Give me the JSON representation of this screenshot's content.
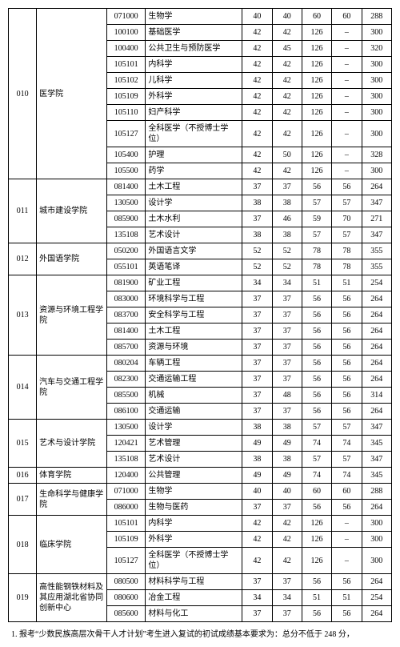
{
  "groups": [
    {
      "code": "010",
      "school": "医学院",
      "rows": [
        {
          "mc": "071000",
          "mn": "生物学",
          "c": [
            "40",
            "40",
            "60",
            "60",
            "288"
          ]
        },
        {
          "mc": "100100",
          "mn": "基础医学",
          "c": [
            "42",
            "42",
            "126",
            "–",
            "300"
          ]
        },
        {
          "mc": "100400",
          "mn": "公共卫生与预防医学",
          "c": [
            "42",
            "45",
            "126",
            "–",
            "320"
          ]
        },
        {
          "mc": "105101",
          "mn": "内科学",
          "c": [
            "42",
            "42",
            "126",
            "–",
            "300"
          ]
        },
        {
          "mc": "105102",
          "mn": "儿科学",
          "c": [
            "42",
            "42",
            "126",
            "–",
            "300"
          ]
        },
        {
          "mc": "105109",
          "mn": "外科学",
          "c": [
            "42",
            "42",
            "126",
            "–",
            "300"
          ]
        },
        {
          "mc": "105110",
          "mn": "妇产科学",
          "c": [
            "42",
            "42",
            "126",
            "–",
            "300"
          ]
        },
        {
          "mc": "105127",
          "mn": "全科医学（不授博士学位）",
          "c": [
            "42",
            "42",
            "126",
            "–",
            "300"
          ]
        },
        {
          "mc": "105400",
          "mn": "护理",
          "c": [
            "42",
            "50",
            "126",
            "–",
            "328"
          ]
        },
        {
          "mc": "105500",
          "mn": "药学",
          "c": [
            "42",
            "42",
            "126",
            "–",
            "300"
          ]
        }
      ]
    },
    {
      "code": "011",
      "school": "城市建设学院",
      "rows": [
        {
          "mc": "081400",
          "mn": "土木工程",
          "c": [
            "37",
            "37",
            "56",
            "56",
            "264"
          ]
        },
        {
          "mc": "130500",
          "mn": "设计学",
          "c": [
            "38",
            "38",
            "57",
            "57",
            "347"
          ]
        },
        {
          "mc": "085900",
          "mn": "土木水利",
          "c": [
            "37",
            "46",
            "59",
            "70",
            "271"
          ]
        },
        {
          "mc": "135108",
          "mn": "艺术设计",
          "c": [
            "38",
            "38",
            "57",
            "57",
            "347"
          ]
        }
      ]
    },
    {
      "code": "012",
      "school": "外国语学院",
      "rows": [
        {
          "mc": "050200",
          "mn": "外国语言文学",
          "c": [
            "52",
            "52",
            "78",
            "78",
            "355"
          ]
        },
        {
          "mc": "055101",
          "mn": "英语笔译",
          "c": [
            "52",
            "52",
            "78",
            "78",
            "355"
          ]
        }
      ]
    },
    {
      "code": "013",
      "school": "资源与环境工程学院",
      "rows": [
        {
          "mc": "081900",
          "mn": "矿业工程",
          "c": [
            "34",
            "34",
            "51",
            "51",
            "254"
          ]
        },
        {
          "mc": "083000",
          "mn": "环境科学与工程",
          "c": [
            "37",
            "37",
            "56",
            "56",
            "264"
          ]
        },
        {
          "mc": "083700",
          "mn": "安全科学与工程",
          "c": [
            "37",
            "37",
            "56",
            "56",
            "264"
          ]
        },
        {
          "mc": "081400",
          "mn": "土木工程",
          "c": [
            "37",
            "37",
            "56",
            "56",
            "264"
          ]
        },
        {
          "mc": "085700",
          "mn": "资源与环境",
          "c": [
            "37",
            "37",
            "56",
            "56",
            "264"
          ]
        }
      ]
    },
    {
      "code": "014",
      "school": "汽车与交通工程学院",
      "rows": [
        {
          "mc": "080204",
          "mn": "车辆工程",
          "c": [
            "37",
            "37",
            "56",
            "56",
            "264"
          ]
        },
        {
          "mc": "082300",
          "mn": "交通运输工程",
          "c": [
            "37",
            "37",
            "56",
            "56",
            "264"
          ]
        },
        {
          "mc": "085500",
          "mn": "机械",
          "c": [
            "37",
            "48",
            "56",
            "56",
            "314"
          ]
        },
        {
          "mc": "086100",
          "mn": "交通运输",
          "c": [
            "37",
            "37",
            "56",
            "56",
            "264"
          ]
        }
      ]
    },
    {
      "code": "015",
      "school": "艺术与设计学院",
      "rows": [
        {
          "mc": "130500",
          "mn": "设计学",
          "c": [
            "38",
            "38",
            "57",
            "57",
            "347"
          ]
        },
        {
          "mc": "120421",
          "mn": "艺术管理",
          "c": [
            "49",
            "49",
            "74",
            "74",
            "345"
          ]
        },
        {
          "mc": "135108",
          "mn": "艺术设计",
          "c": [
            "38",
            "38",
            "57",
            "57",
            "347"
          ]
        }
      ]
    },
    {
      "code": "016",
      "school": "体育学院",
      "rows": [
        {
          "mc": "120400",
          "mn": "公共管理",
          "c": [
            "49",
            "49",
            "74",
            "74",
            "345"
          ]
        }
      ]
    },
    {
      "code": "017",
      "school": "生命科学与健康学院",
      "rows": [
        {
          "mc": "071000",
          "mn": "生物学",
          "c": [
            "40",
            "40",
            "60",
            "60",
            "288"
          ]
        },
        {
          "mc": "086000",
          "mn": "生物与医药",
          "c": [
            "37",
            "37",
            "56",
            "56",
            "264"
          ]
        }
      ]
    },
    {
      "code": "018",
      "school": "临床学院",
      "rows": [
        {
          "mc": "105101",
          "mn": "内科学",
          "c": [
            "42",
            "42",
            "126",
            "–",
            "300"
          ]
        },
        {
          "mc": "105109",
          "mn": "外科学",
          "c": [
            "42",
            "42",
            "126",
            "–",
            "300"
          ]
        },
        {
          "mc": "105127",
          "mn": "全科医学（不授博士学位）",
          "c": [
            "42",
            "42",
            "126",
            "–",
            "300"
          ]
        }
      ]
    },
    {
      "code": "019",
      "school": "高性能钢铁材料及其应用湖北省协同创新中心",
      "rows": [
        {
          "mc": "080500",
          "mn": "材料科学与工程",
          "c": [
            "37",
            "37",
            "56",
            "56",
            "264"
          ]
        },
        {
          "mc": "080600",
          "mn": "冶金工程",
          "c": [
            "34",
            "34",
            "51",
            "51",
            "254"
          ]
        },
        {
          "mc": "085600",
          "mn": "材料与化工",
          "c": [
            "37",
            "37",
            "56",
            "56",
            "264"
          ]
        }
      ]
    }
  ],
  "footnote": "1. 报考“少数民族高层次骨干人才计划”考生进入复试的初试成绩基本要求为：总分不低于 248 分，"
}
